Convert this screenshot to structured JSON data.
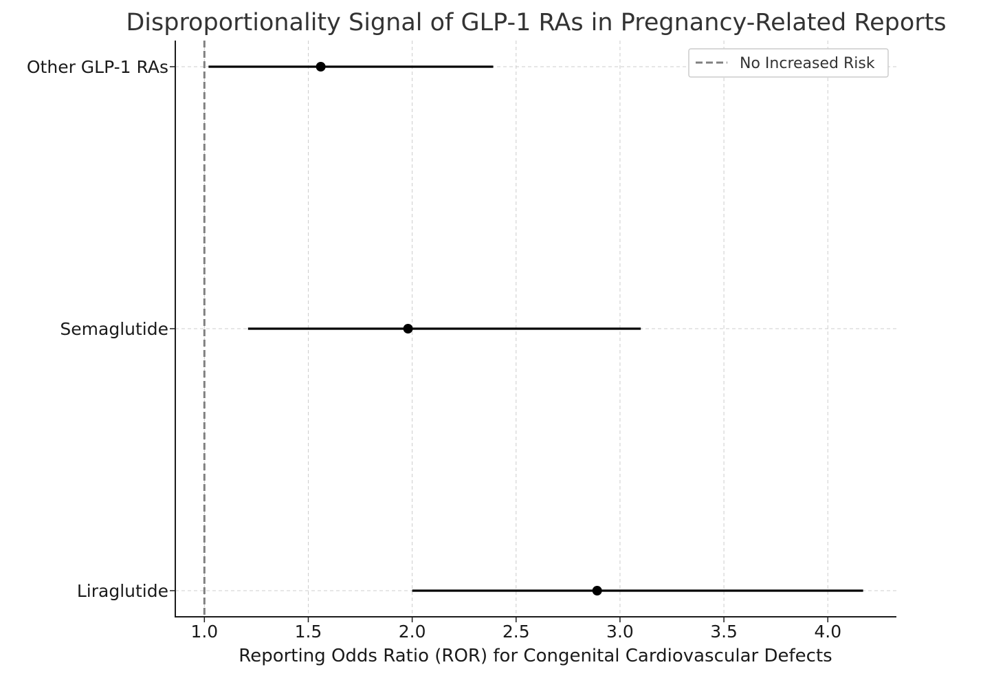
{
  "chart_data": {
    "type": "forest",
    "title": "Disproportionality Signal of GLP-1 RAs in Pregnancy-Related Reports",
    "xlabel": "Reporting Odds Ratio (ROR) for Congenital Cardiovascular Defects",
    "ylabel": "",
    "xlim": [
      0.86,
      4.33
    ],
    "xticks": [
      1.0,
      1.5,
      2.0,
      2.5,
      3.0,
      3.5,
      4.0
    ],
    "xtick_labels": [
      "1.0",
      "1.5",
      "2.0",
      "2.5",
      "3.0",
      "3.5",
      "4.0"
    ],
    "grid": true,
    "categories": [
      "Other GLP-1 RAs",
      "Semaglutide",
      "Liraglutide"
    ],
    "points": [
      {
        "label": "Other GLP-1 RAs",
        "ror": 1.56,
        "ci_low": 1.02,
        "ci_high": 2.39
      },
      {
        "label": "Semaglutide",
        "ror": 1.98,
        "ci_low": 1.21,
        "ci_high": 3.1
      },
      {
        "label": "Liraglutide",
        "ror": 2.89,
        "ci_low": 2.0,
        "ci_high": 4.17
      }
    ],
    "reference_line": {
      "x": 1.0,
      "style": "dashed",
      "color": "#808080",
      "label": "No Increased Risk"
    },
    "legend": {
      "position": "top-right",
      "entries": [
        "No Increased Risk"
      ]
    },
    "colors": {
      "point": "#000000",
      "ci": "#000000",
      "grid": "#cccccc",
      "axis": "#1a1a1a"
    }
  }
}
